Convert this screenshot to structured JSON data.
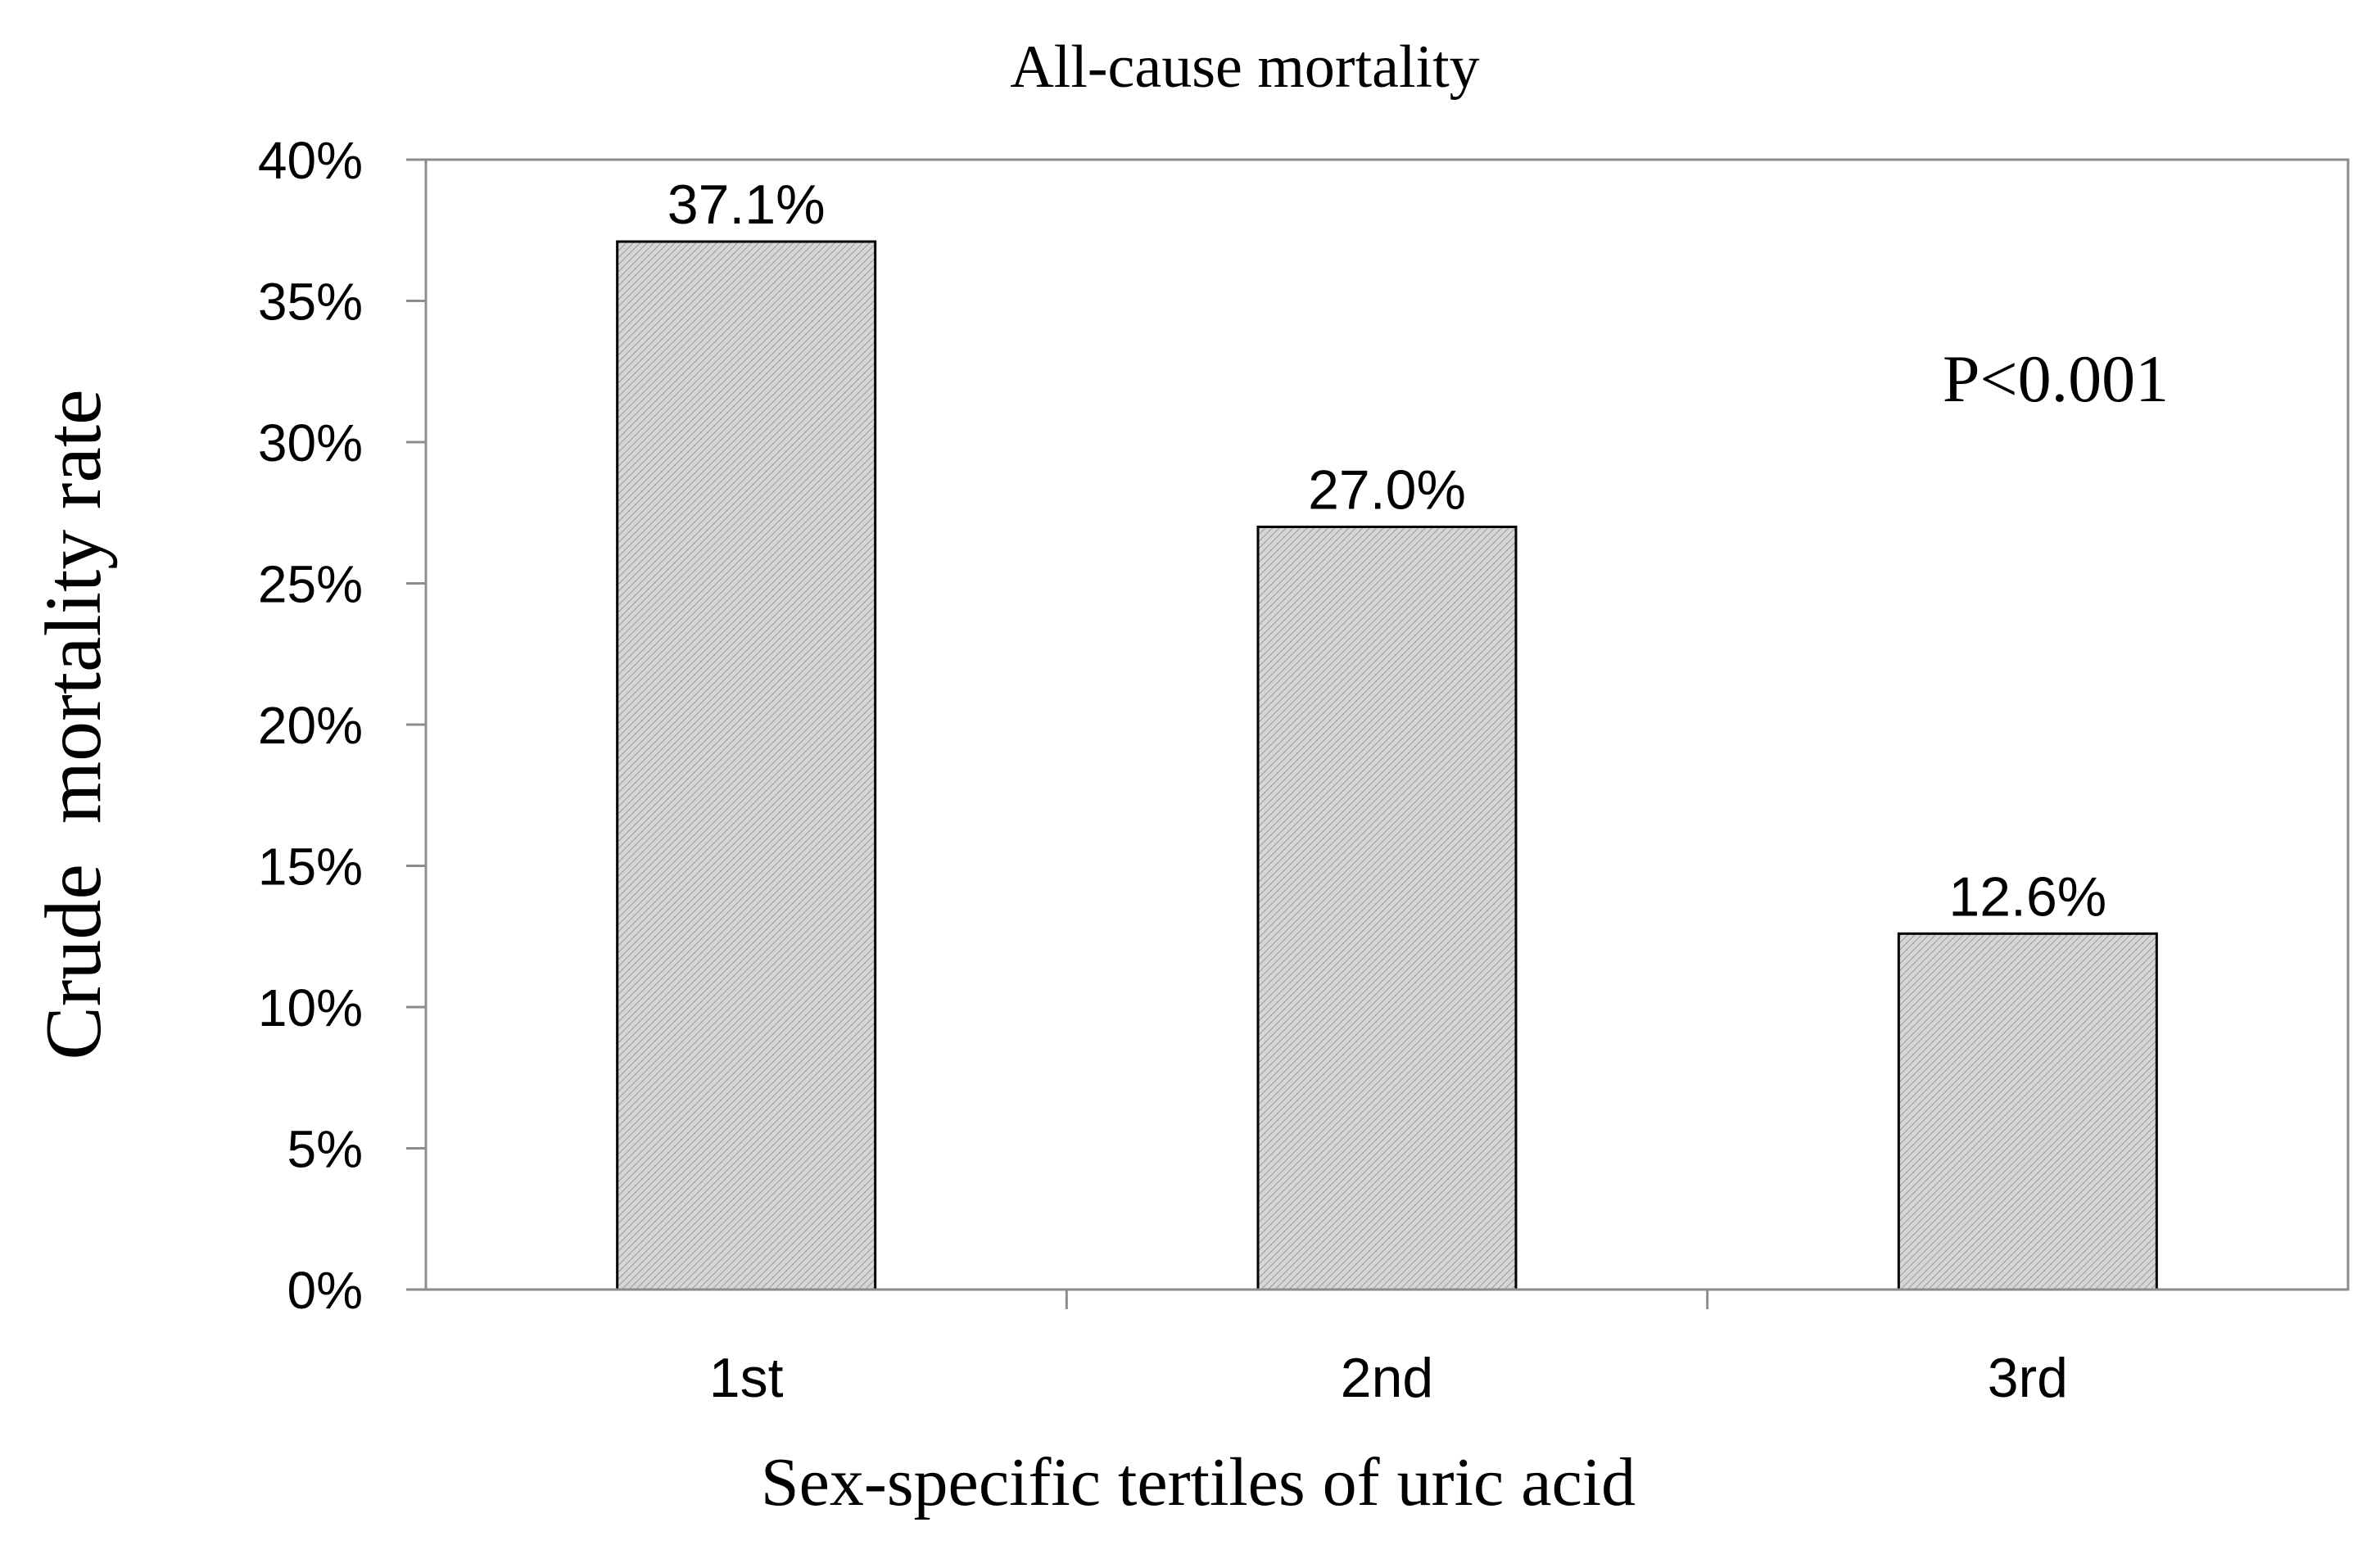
{
  "chart_data": {
    "type": "bar",
    "title": "All-cause mortality",
    "xlabel": "Sex-specific tertiles of uric acid",
    "ylabel": "Crude  mortality rate",
    "categories": [
      "1st",
      "2nd",
      "3rd"
    ],
    "values": [
      37.1,
      27.0,
      12.6
    ],
    "data_labels": [
      "37.1%",
      "27.0%",
      "12.6%"
    ],
    "yticks": [
      "0%",
      "5%",
      "10%",
      "15%",
      "20%",
      "25%",
      "30%",
      "35%",
      "40%"
    ],
    "ylim": [
      0,
      40
    ],
    "annotation": "P<0.001",
    "grid": false,
    "legend": "none",
    "bar_fill": "#cfcfcf",
    "bar_stroke": "#000000"
  }
}
